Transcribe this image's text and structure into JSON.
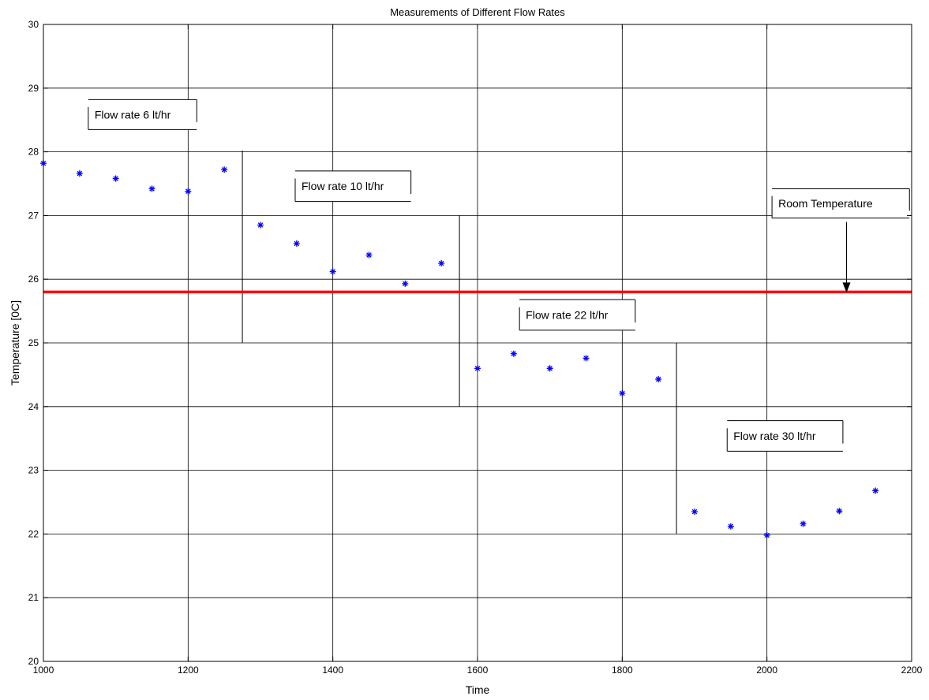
{
  "chart_data": {
    "type": "scatter",
    "title": "Measurements of Different Flow Rates",
    "xlabel": "Time",
    "ylabel": "Temperature [0C]",
    "xlim": [
      1000,
      2200
    ],
    "ylim": [
      20,
      30
    ],
    "grid": true,
    "x_ticks": [
      1000,
      1200,
      1400,
      1600,
      1800,
      2000,
      2200
    ],
    "y_ticks": [
      20,
      21,
      22,
      23,
      24,
      25,
      26,
      27,
      28,
      29,
      30
    ],
    "series": [
      {
        "marker": "*",
        "color": "#0000ff",
        "points": [
          {
            "x": 1000,
            "y": 27.82
          },
          {
            "x": 1050,
            "y": 27.66
          },
          {
            "x": 1100,
            "y": 27.58
          },
          {
            "x": 1150,
            "y": 27.42
          },
          {
            "x": 1200,
            "y": 27.38
          },
          {
            "x": 1250,
            "y": 27.72
          },
          {
            "x": 1300,
            "y": 26.85
          },
          {
            "x": 1350,
            "y": 26.56
          },
          {
            "x": 1400,
            "y": 26.12
          },
          {
            "x": 1450,
            "y": 26.38
          },
          {
            "x": 1500,
            "y": 25.93
          },
          {
            "x": 1550,
            "y": 26.25
          },
          {
            "x": 1600,
            "y": 24.6
          },
          {
            "x": 1650,
            "y": 24.83
          },
          {
            "x": 1700,
            "y": 24.6
          },
          {
            "x": 1750,
            "y": 24.76
          },
          {
            "x": 1800,
            "y": 24.21
          },
          {
            "x": 1850,
            "y": 24.43
          },
          {
            "x": 1900,
            "y": 22.35
          },
          {
            "x": 1950,
            "y": 22.12
          },
          {
            "x": 2000,
            "y": 21.98
          },
          {
            "x": 2050,
            "y": 22.16
          },
          {
            "x": 2100,
            "y": 22.36
          },
          {
            "x": 2150,
            "y": 22.68
          }
        ]
      }
    ],
    "reference_line": {
      "y": 25.8,
      "color": "#ff0000"
    },
    "dividers": [
      {
        "x": 1275,
        "y_from": 25.0,
        "y_to": 28.02
      },
      {
        "x": 1575,
        "y_from": 24.0,
        "y_to": 27.0
      },
      {
        "x": 1875,
        "y_from": 22.0,
        "y_to": 25.0
      }
    ],
    "annotations": [
      {
        "text": "Flow rate 6 lt/hr",
        "x": 1062,
        "y": 28.35,
        "x2": 1212,
        "y2": 28.82
      },
      {
        "text": "Flow rate 10 lt/hr",
        "x": 1348,
        "y": 27.22,
        "x2": 1508,
        "y2": 27.7
      },
      {
        "text": "Flow rate 22 lt/hr",
        "x": 1658,
        "y": 25.2,
        "x2": 1818,
        "y2": 25.68
      },
      {
        "text": "Flow rate 30 lt/hr",
        "x": 1945,
        "y": 23.3,
        "x2": 2105,
        "y2": 23.78
      },
      {
        "text": "Room Temperature",
        "x": 2007,
        "y": 26.96,
        "x2": 2197,
        "y2": 27.42
      }
    ],
    "arrow": {
      "x": 2110,
      "y_from": 26.9,
      "y_to": 25.8
    }
  }
}
